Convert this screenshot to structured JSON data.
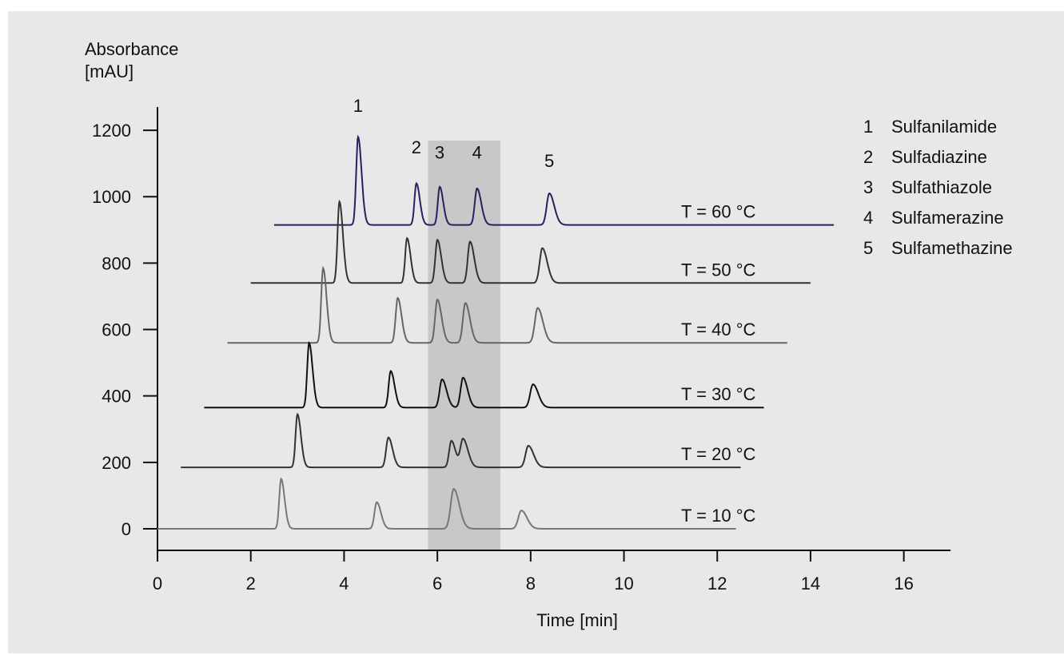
{
  "chart_data": {
    "type": "line",
    "ylabel_line1": "Absorbance",
    "ylabel_line2": "[mAU]",
    "xlabel": "Time [min]",
    "xlim": [
      0,
      17
    ],
    "ylim": [
      -65,
      1270
    ],
    "xticks": [
      0,
      2,
      4,
      6,
      8,
      10,
      12,
      14,
      16
    ],
    "yticks": [
      0,
      200,
      400,
      600,
      800,
      1000,
      1200
    ],
    "highlight_region": [
      5.8,
      7.35
    ],
    "peak_labels": [
      {
        "label": "1",
        "x": 4.3,
        "y": 1255
      },
      {
        "label": "2",
        "x": 5.55,
        "y": 1130
      },
      {
        "label": "3",
        "x": 6.05,
        "y": 1115
      },
      {
        "label": "4",
        "x": 6.85,
        "y": 1115
      },
      {
        "label": "5",
        "x": 8.4,
        "y": 1090
      }
    ],
    "legend": [
      {
        "num": "1",
        "name": "Sulfanilamide"
      },
      {
        "num": "2",
        "name": "Sulfadiazine"
      },
      {
        "num": "3",
        "name": "Sulfathiazole"
      },
      {
        "num": "4",
        "name": "Sulfamerazine"
      },
      {
        "num": "5",
        "name": "Sulfamethazine"
      }
    ],
    "series": [
      {
        "name": "T = 60 °C",
        "baseline": 915,
        "x_range": [
          2.5,
          14.5
        ],
        "color": "#2a2060",
        "peaks": [
          [
            4.3,
            1180,
            0.05
          ],
          [
            5.55,
            1040,
            0.05
          ],
          [
            6.05,
            1030,
            0.05
          ],
          [
            6.85,
            1025,
            0.06
          ],
          [
            8.4,
            1010,
            0.07
          ]
        ]
      },
      {
        "name": "T = 50 °C",
        "baseline": 740,
        "x_range": [
          2.0,
          14.0
        ],
        "color": "#333333",
        "peaks": [
          [
            3.9,
            985,
            0.05
          ],
          [
            5.35,
            875,
            0.05
          ],
          [
            6.0,
            870,
            0.055
          ],
          [
            6.7,
            865,
            0.06
          ],
          [
            8.25,
            845,
            0.07
          ]
        ]
      },
      {
        "name": "T = 40 °C",
        "baseline": 560,
        "x_range": [
          1.5,
          13.5
        ],
        "color": "#666666",
        "peaks": [
          [
            3.55,
            785,
            0.05
          ],
          [
            5.15,
            695,
            0.055
          ],
          [
            6.0,
            690,
            0.06
          ],
          [
            6.6,
            680,
            0.065
          ],
          [
            8.15,
            665,
            0.075
          ]
        ]
      },
      {
        "name": "T = 30 °C",
        "baseline": 365,
        "x_range": [
          1.0,
          13.0
        ],
        "color": "#111111",
        "peaks": [
          [
            3.25,
            560,
            0.05
          ],
          [
            5.0,
            475,
            0.055
          ],
          [
            6.1,
            450,
            0.065
          ],
          [
            6.55,
            455,
            0.065
          ],
          [
            8.05,
            435,
            0.075
          ]
        ]
      },
      {
        "name": "T = 20 °C",
        "baseline": 185,
        "x_range": [
          0.5,
          12.5
        ],
        "color": "#333333",
        "peaks": [
          [
            3.0,
            345,
            0.05
          ],
          [
            4.95,
            275,
            0.06
          ],
          [
            6.3,
            265,
            0.06
          ],
          [
            6.55,
            270,
            0.07
          ],
          [
            7.95,
            250,
            0.075
          ]
        ]
      },
      {
        "name": "T = 10 °C",
        "baseline": 0,
        "x_range": [
          0.0,
          12.4
        ],
        "color": "#777777",
        "peaks": [
          [
            2.65,
            150,
            0.05
          ],
          [
            4.7,
            80,
            0.06
          ],
          [
            6.35,
            120,
            0.08
          ],
          [
            7.8,
            55,
            0.08
          ]
        ]
      }
    ]
  }
}
